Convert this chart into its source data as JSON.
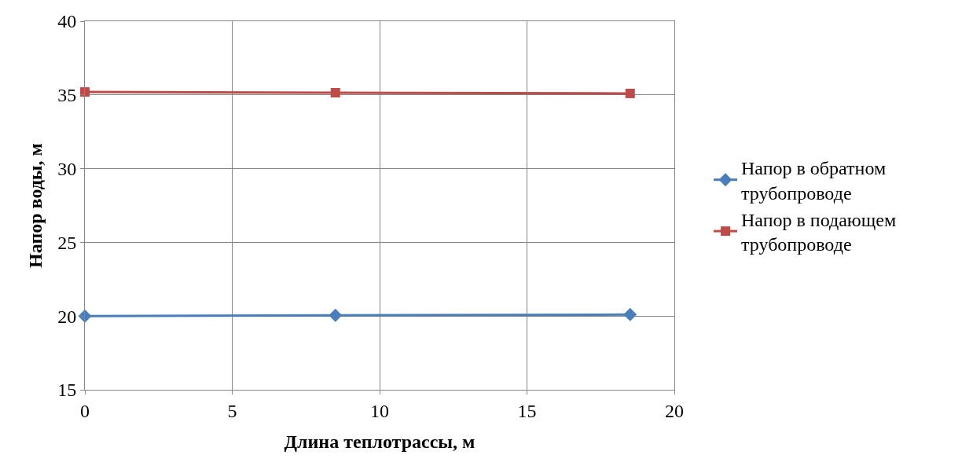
{
  "chart_data": {
    "type": "line",
    "xlabel": "Длина теплотрассы, м",
    "ylabel": "Напор воды, м",
    "xlim": [
      0,
      20
    ],
    "xticks": [
      0,
      5,
      10,
      15,
      20
    ],
    "ylim": [
      15,
      40
    ],
    "yticks": [
      15,
      20,
      25,
      30,
      35,
      40
    ],
    "grid": true,
    "legend": "right",
    "x": [
      0,
      8.5,
      18.5
    ],
    "series": [
      {
        "name": "Напор в обратном трубопроводе",
        "color": "#4a7ebb",
        "marker": "diamond",
        "values": [
          20.0,
          20.05,
          20.1
        ]
      },
      {
        "name": "Напор в подающем трубопроводе",
        "color": "#be4b48",
        "marker": "square",
        "values": [
          35.2,
          35.15,
          35.1
        ]
      }
    ]
  }
}
